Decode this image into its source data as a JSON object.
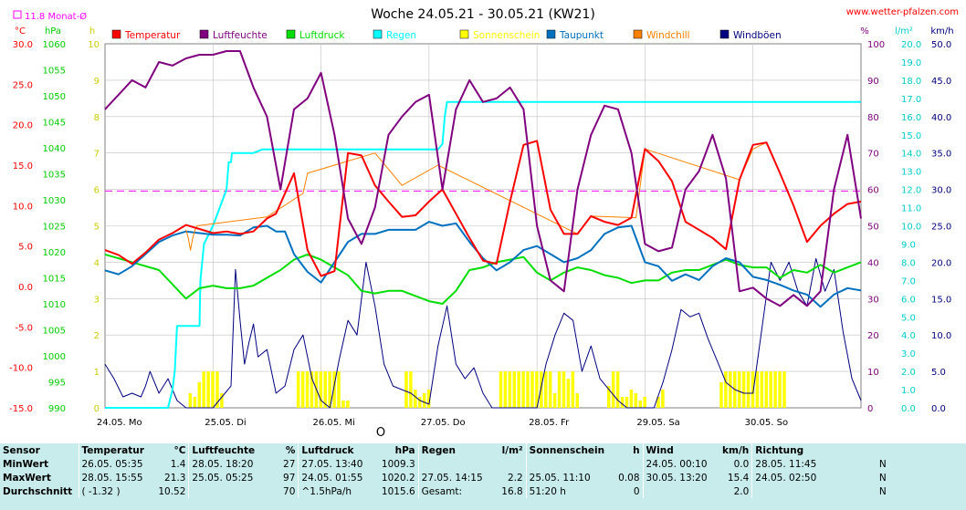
{
  "header": {
    "title": "Woche 24.05.21 - 30.05.21 (KW21)",
    "site": "www.wetter-pfalzen.com",
    "month_avg": "11.8 Monat-Ø"
  },
  "axes": {
    "left1_unit": "°C",
    "left2_unit": "hPa",
    "left3_unit": "h",
    "right1_unit": "%",
    "right2_unit": "l/m²",
    "right3_unit": "km/h",
    "temp_ticks": [
      "30.0",
      "25.0",
      "20.0",
      "15.0",
      "10.0",
      "5.0",
      "0.0",
      "-5.0",
      "-10.0",
      "-15.0"
    ],
    "hpa_ticks": [
      "1060",
      "1055",
      "1050",
      "1045",
      "1040",
      "1035",
      "1030",
      "1025",
      "1020",
      "1015",
      "1010",
      "1005",
      "1000",
      "995",
      "990"
    ],
    "h_ticks": [
      "10",
      "9",
      "8",
      "7",
      "6",
      "5",
      "4",
      "3",
      "2",
      "1",
      "0"
    ],
    "pct_ticks": [
      "100",
      "90",
      "80",
      "70",
      "60",
      "50",
      "40",
      "30",
      "20",
      "10",
      "0"
    ],
    "rain_ticks": [
      "20.0",
      "19.0",
      "18.0",
      "17.0",
      "16.0",
      "15.0",
      "14.0",
      "13.0",
      "12.0",
      "11.0",
      "10.0",
      "9.0",
      "8.0",
      "7.0",
      "6.0",
      "5.0",
      "4.0",
      "3.0",
      "2.0",
      "1.0",
      "0.0"
    ],
    "wind_ticks": [
      "50.0",
      "45.0",
      "40.0",
      "35.0",
      "30.0",
      "25.0",
      "20.0",
      "15.0",
      "10.0",
      "5.0",
      "0.0"
    ],
    "day_labels": [
      "24.05. Mo",
      "25.05. Di",
      "26.05. Mi",
      "27.05. Do",
      "28.05. Fr",
      "29.05. Sa",
      "30.05. So"
    ],
    "moon_symbol": "O"
  },
  "legend": [
    {
      "name": "Temperatur",
      "color": "#ff0000"
    },
    {
      "name": "Luftfeuchte",
      "color": "#800080"
    },
    {
      "name": "Luftdruck",
      "color": "#00dd00"
    },
    {
      "name": "Regen",
      "color": "#00ffff"
    },
    {
      "name": "Sonnenschein",
      "color": "#ffff00"
    },
    {
      "name": "Taupunkt",
      "color": "#0070c0"
    },
    {
      "name": "Windchill",
      "color": "#ff8000"
    },
    {
      "name": "Windböen",
      "color": "#000080"
    }
  ],
  "colors": {
    "temp_axis": "#ff0000",
    "hpa_axis": "#00cc00",
    "h_axis": "#cccc00",
    "pct_axis": "#800080",
    "rain_axis": "#00cccc",
    "wind_axis": "#000080",
    "grid": "#c0c0c0",
    "monthavg": "#ff00ff",
    "stats_bg": "#c8ecec"
  },
  "chart_data": {
    "type": "line",
    "x_unit": "hours since 24.05. 00:00",
    "xlim": [
      0,
      168
    ],
    "monthly_avg_temp": 11.8,
    "series": [
      {
        "name": "Temperatur",
        "axis": "°C",
        "x": [
          0,
          3,
          6,
          9,
          12,
          15,
          18,
          21,
          24,
          27,
          30,
          33,
          36,
          38,
          40,
          42,
          45,
          48,
          51,
          54,
          57,
          60,
          63,
          66,
          69,
          72,
          75,
          78,
          81,
          84,
          87,
          90,
          93,
          96,
          99,
          102,
          105,
          108,
          111,
          114,
          117,
          120,
          123,
          126,
          129,
          132,
          135,
          138,
          141,
          144,
          147,
          150,
          153,
          156,
          159,
          162,
          165,
          168
        ],
        "values": [
          4.5,
          3.9,
          2.8,
          4.2,
          5.8,
          6.6,
          7.6,
          7.1,
          6.6,
          6.8,
          6.5,
          6.8,
          8.4,
          9.0,
          11.5,
          14.0,
          4.5,
          1.3,
          1.9,
          16.5,
          16.2,
          12.5,
          10.5,
          8.6,
          8.8,
          10.5,
          12.0,
          9.0,
          6.0,
          3.2,
          2.8,
          10.5,
          17.5,
          18.0,
          9.5,
          6.5,
          6.5,
          8.7,
          8.0,
          7.6,
          8.5,
          17.0,
          15.5,
          13.0,
          8.0,
          7.0,
          6.0,
          4.6,
          13.2,
          17.5,
          17.8,
          14.0,
          10.0,
          5.5,
          7.5,
          9.0,
          10.2,
          10.5
        ]
      },
      {
        "name": "Luftfeuchte",
        "axis": "%",
        "x": [
          0,
          3,
          6,
          9,
          12,
          15,
          18,
          21,
          24,
          27,
          30,
          33,
          36,
          39,
          42,
          45,
          48,
          51,
          54,
          57,
          60,
          63,
          66,
          69,
          72,
          75,
          78,
          81,
          84,
          87,
          90,
          93,
          96,
          99,
          102,
          105,
          108,
          111,
          114,
          117,
          120,
          123,
          126,
          129,
          132,
          135,
          138,
          141,
          144,
          147,
          150,
          153,
          156,
          159,
          162,
          165,
          168
        ],
        "values": [
          82,
          86,
          90,
          88,
          95,
          94,
          96,
          97,
          97,
          98,
          98,
          88,
          80,
          60,
          82,
          85,
          92,
          75,
          52,
          45,
          55,
          75,
          80,
          84,
          86,
          60,
          82,
          90,
          84,
          85,
          88,
          82,
          50,
          35,
          32,
          60,
          75,
          83,
          82,
          70,
          45,
          43,
          44,
          60,
          65,
          75,
          63,
          32,
          33,
          30,
          28,
          31,
          28,
          32,
          60,
          75,
          52
        ]
      },
      {
        "name": "Luftdruck",
        "axis": "hPa",
        "x": [
          0,
          6,
          12,
          18,
          21,
          24,
          27,
          30,
          33,
          36,
          39,
          42,
          45,
          48,
          51,
          54,
          57,
          60,
          63,
          66,
          69,
          72,
          75,
          78,
          81,
          84,
          87,
          90,
          93,
          96,
          99,
          102,
          105,
          108,
          111,
          114,
          117,
          120,
          123,
          126,
          129,
          132,
          135,
          138,
          141,
          144,
          147,
          150,
          153,
          156,
          159,
          162,
          165,
          168
        ],
        "values": [
          1019.5,
          1018.0,
          1016.5,
          1011.0,
          1013.0,
          1013.5,
          1013.0,
          1013.0,
          1013.5,
          1015.0,
          1016.5,
          1018.5,
          1019.5,
          1018.5,
          1017.0,
          1015.5,
          1012.5,
          1012.0,
          1012.5,
          1012.5,
          1011.5,
          1010.5,
          1010.0,
          1012.5,
          1016.5,
          1017.0,
          1018.0,
          1018.5,
          1019.0,
          1016.0,
          1014.5,
          1016.0,
          1017.0,
          1016.5,
          1015.5,
          1015.0,
          1014.0,
          1014.5,
          1014.5,
          1016.0,
          1016.5,
          1016.5,
          1017.5,
          1018.5,
          1017.5,
          1017.0,
          1017.0,
          1015.0,
          1016.5,
          1016.0,
          1017.5,
          1016.0,
          1017.0,
          1018.0
        ]
      },
      {
        "name": "Regen",
        "axis": "l/m²",
        "x": [
          0,
          8,
          9,
          12,
          14,
          15,
          15.5,
          16,
          21,
          21.2,
          22,
          24,
          27,
          27.5,
          28,
          28.2,
          30,
          33,
          35,
          36,
          36.5,
          40,
          45,
          50,
          55,
          60,
          63,
          66,
          69,
          72,
          74,
          75,
          75.5,
          76,
          84,
          90,
          96,
          100,
          108,
          120,
          144,
          168
        ],
        "values": [
          0,
          0,
          0,
          0,
          0,
          1.0,
          2.0,
          4.5,
          4.5,
          7.0,
          9.0,
          10.0,
          12.0,
          13.5,
          13.5,
          14.0,
          14.0,
          14.0,
          14.2,
          14.2,
          14.2,
          14.2,
          14.2,
          14.2,
          14.2,
          14.2,
          14.2,
          14.2,
          14.2,
          14.2,
          14.2,
          14.5,
          16.0,
          16.8,
          16.8,
          16.8,
          16.8,
          16.8,
          16.8,
          16.8,
          16.8,
          16.8
        ]
      },
      {
        "name": "Taupunkt",
        "axis": "°C",
        "x": [
          0,
          3,
          6,
          9,
          12,
          15,
          18,
          21,
          24,
          27,
          30,
          33,
          36,
          38,
          40,
          42,
          45,
          48,
          51,
          54,
          57,
          60,
          63,
          66,
          69,
          72,
          75,
          78,
          81,
          84,
          87,
          90,
          93,
          96,
          99,
          102,
          105,
          108,
          111,
          114,
          117,
          120,
          123,
          126,
          129,
          132,
          135,
          138,
          141,
          144,
          147,
          150,
          153,
          156,
          159,
          162,
          165,
          168
        ],
        "values": [
          2.0,
          1.5,
          2.5,
          4.0,
          5.5,
          6.3,
          6.8,
          6.6,
          6.4,
          6.4,
          6.3,
          7.3,
          7.5,
          6.8,
          6.8,
          4.0,
          1.8,
          0.5,
          3.0,
          5.5,
          6.5,
          6.5,
          7.0,
          7.0,
          7.0,
          8.0,
          7.5,
          7.8,
          5.5,
          3.5,
          2.0,
          3.0,
          4.5,
          5.0,
          4.0,
          3.0,
          3.5,
          4.5,
          6.5,
          7.3,
          7.5,
          3.0,
          2.5,
          0.7,
          1.5,
          0.8,
          2.5,
          3.5,
          3.0,
          1.2,
          0.8,
          0.2,
          -0.5,
          -1.0,
          -2.5,
          -1.0,
          -0.2,
          -0.5
        ]
      },
      {
        "name": "Windchill",
        "axis": "°C",
        "x": [
          18,
          18.5,
          19,
          19.5,
          20,
          20.5,
          36,
          44,
          45,
          60,
          66,
          74,
          105,
          108,
          118,
          120,
          141,
          144,
          147,
          150
        ],
        "values": [
          7.0,
          6.0,
          4.5,
          6.0,
          7.0,
          7.5,
          8.6,
          11.5,
          14.0,
          16.5,
          12.5,
          15.0,
          6.5,
          8.7,
          8.5,
          17.0,
          13.2,
          17.0,
          17.8,
          14.0
        ]
      },
      {
        "name": "Windböen",
        "axis": "km/h",
        "x": [
          0,
          2,
          4,
          6,
          8,
          9,
          10,
          12,
          14,
          16,
          18,
          20,
          22,
          24,
          26,
          28,
          29,
          30,
          31,
          32,
          33,
          34,
          36,
          38,
          40,
          42,
          44,
          46,
          48,
          50,
          52,
          54,
          56,
          58,
          60,
          62,
          64,
          66,
          68,
          70,
          72,
          74,
          76,
          78,
          80,
          82,
          84,
          86,
          88,
          90,
          92,
          94,
          96,
          98,
          100,
          102,
          104,
          106,
          108,
          110,
          112,
          114,
          116,
          118,
          120,
          122,
          124,
          126,
          128,
          130,
          132,
          134,
          136,
          138,
          140,
          142,
          144,
          146,
          148,
          150,
          152,
          154,
          156,
          158,
          160,
          162,
          164,
          166,
          168
        ],
        "values": [
          6.0,
          4.0,
          1.5,
          2.0,
          1.5,
          3.0,
          5.0,
          2.0,
          4.0,
          1.0,
          0.0,
          0.0,
          0.0,
          0.0,
          1.5,
          3.0,
          19.0,
          12.0,
          6.0,
          9.0,
          11.5,
          7.0,
          8.0,
          2.0,
          3.0,
          8.0,
          10.0,
          4.0,
          1.0,
          0.0,
          6.5,
          12.0,
          10.0,
          20.0,
          14.0,
          6.0,
          3.0,
          2.5,
          2.0,
          1.0,
          0.5,
          8.5,
          14.0,
          6.0,
          4.0,
          5.5,
          2.0,
          0.0,
          0.0,
          0.0,
          0.0,
          0.0,
          0.0,
          6.0,
          10.0,
          13.0,
          12.0,
          5.0,
          8.5,
          4.0,
          2.5,
          1.0,
          0.0,
          0.0,
          0.0,
          0.0,
          3.5,
          8.0,
          13.5,
          12.5,
          13.0,
          9.5,
          6.5,
          3.5,
          2.5,
          2.0,
          2.0,
          11.0,
          20.0,
          17.5,
          20.0,
          16.0,
          14.0,
          20.5,
          16.0,
          19.0,
          10.5,
          4.0,
          1.0
        ]
      }
    ],
    "sunshine": {
      "name": "Sonnenschein",
      "axis": "h",
      "x": [
        19,
        20,
        21,
        22,
        23,
        24,
        25,
        26,
        43,
        44,
        45,
        46,
        47,
        48,
        49,
        50,
        51,
        52,
        53,
        54,
        67,
        68,
        69,
        70,
        71,
        72,
        88,
        89,
        90,
        91,
        92,
        93,
        94,
        95,
        96,
        97,
        98,
        99,
        100,
        101,
        102,
        103,
        104,
        105,
        112,
        113,
        114,
        115,
        116,
        117,
        118,
        119,
        120,
        123,
        124,
        137,
        138,
        139,
        140,
        141,
        142,
        143,
        144,
        145,
        146,
        147,
        148,
        149,
        150,
        151
      ],
      "values": [
        0.4,
        0.3,
        0.7,
        1.0,
        1.0,
        1.0,
        1.0,
        0.4,
        1.0,
        1.0,
        1.0,
        1.0,
        1.0,
        1.0,
        1.0,
        1.0,
        1.0,
        1.0,
        0.2,
        0.2,
        1.0,
        1.0,
        0.5,
        0.3,
        0.4,
        0.5,
        1.0,
        1.0,
        1.0,
        1.0,
        1.0,
        1.0,
        1.0,
        1.0,
        1.0,
        1.0,
        1.0,
        1.0,
        0.4,
        1.0,
        1.0,
        0.8,
        1.0,
        0.4,
        0.6,
        1.0,
        1.0,
        0.3,
        0.3,
        0.5,
        0.4,
        0.2,
        0.3,
        0.3,
        0.5,
        0.7,
        1.0,
        1.0,
        1.0,
        1.0,
        1.0,
        1.0,
        1.0,
        1.0,
        1.0,
        1.0,
        1.0,
        1.0,
        1.0,
        1.0
      ]
    }
  },
  "stats": {
    "headers": {
      "sensor": "Sensor",
      "temp": "Temperatur",
      "temp_u": "°C",
      "hum": "Luftfeuchte",
      "hum_u": "%",
      "press": "Luftdruck",
      "press_u": "hPa",
      "rain": "Regen",
      "rain_u": "l/m²",
      "sun": "Sonnenschein",
      "sun_u": "h",
      "wind": "Wind",
      "wind_u": "km/h",
      "dir": "Richtung"
    },
    "min": {
      "label": "MinWert",
      "temp_t": "26.05.  05:35",
      "temp_v": "1.4",
      "hum_t": "28.05.  18:20",
      "hum_v": "27",
      "press_t": "27.05.  13:40",
      "press_v": "1009.3",
      "rain_t": "",
      "rain_v": "",
      "sun_t": "",
      "sun_v": "",
      "wind_t": "24.05.  00:10",
      "wind_v": "0.0",
      "dir_t": "28.05.  11:45",
      "dir_v": "N"
    },
    "max": {
      "label": "MaxWert",
      "temp_t": "28.05.  15:55",
      "temp_v": "21.3",
      "hum_t": "25.05.  05:25",
      "hum_v": "97",
      "press_t": "24.05.  01:55",
      "press_v": "1020.2",
      "rain_t": "27.05.  14:15",
      "rain_v": "2.2",
      "sun_t": "25.05.  11:10",
      "sun_v": "0.08",
      "wind_t": "30.05.  13:20",
      "wind_v": "15.4",
      "dir_t": "24.05.  02:50",
      "dir_v": "N"
    },
    "avg": {
      "label": "Durchschnitt",
      "temp_t": "( -1.32 )",
      "temp_v": "10.52",
      "hum_t": "",
      "hum_v": "70",
      "press_t": "^1.5hPa/h",
      "press_v": "1015.6",
      "rain_t": "Gesamt:",
      "rain_v": "16.8",
      "sun_t": "51:20 h",
      "sun_v": "0",
      "wind_t": "",
      "wind_v": "2.0",
      "dir_t": "",
      "dir_v": "N"
    }
  }
}
